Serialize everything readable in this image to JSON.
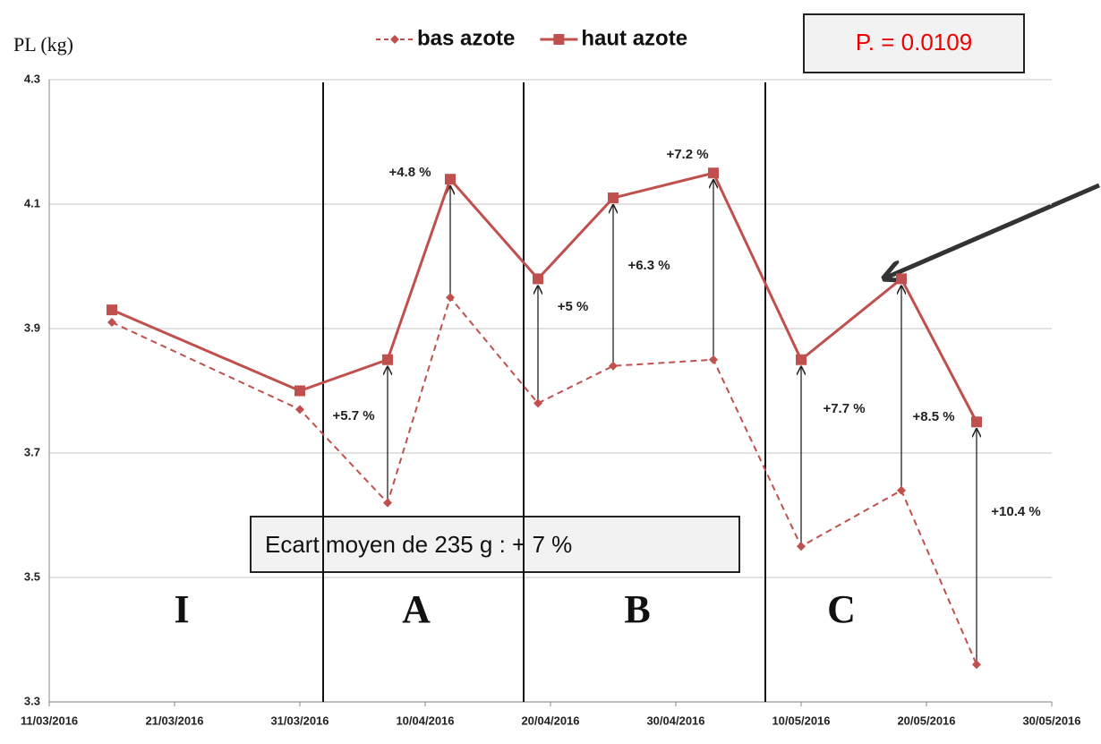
{
  "chart_data": {
    "type": "line",
    "y_label": "PL (kg)",
    "x": [
      "2016-03-16",
      "2016-03-31",
      "2016-04-07",
      "2016-04-12",
      "2016-04-19",
      "2016-04-25",
      "2016-05-03",
      "2016-05-10",
      "2016-05-18",
      "2016-05-24"
    ],
    "series": [
      {
        "name": "bas azote",
        "color": "#c0504d",
        "dashed": true,
        "marker": "diamond",
        "values": [
          3.91,
          3.77,
          3.62,
          3.95,
          3.78,
          3.84,
          3.85,
          3.55,
          3.64,
          3.36
        ]
      },
      {
        "name": "haut azote",
        "color": "#c0504d",
        "dashed": false,
        "marker": "square",
        "values": [
          3.93,
          3.8,
          3.85,
          4.14,
          3.98,
          4.11,
          4.15,
          3.85,
          3.98,
          3.75
        ]
      }
    ],
    "xlim": [
      "2016-03-11",
      "2016-05-30"
    ],
    "xticks": [
      {
        "value": "2016-03-11",
        "label": "11/03/2016"
      },
      {
        "value": "2016-03-21",
        "label": "21/03/2016"
      },
      {
        "value": "2016-03-31",
        "label": "31/03/2016"
      },
      {
        "value": "2016-04-10",
        "label": "10/04/2016"
      },
      {
        "value": "2016-04-20",
        "label": "20/04/2016"
      },
      {
        "value": "2016-04-30",
        "label": "30/04/2016"
      },
      {
        "value": "2016-05-10",
        "label": "10/05/2016"
      },
      {
        "value": "2016-05-20",
        "label": "20/05/2016"
      },
      {
        "value": "2016-05-30",
        "label": "30/05/2016"
      }
    ],
    "ylim": [
      3.3,
      4.3
    ],
    "yticks": [
      3.3,
      3.5,
      3.7,
      3.9,
      4.1,
      4.3
    ],
    "grid": true,
    "annotations": [
      "+5.7 %",
      "+4.8 %",
      "+5 %",
      "+6.3 %",
      "+7.2 %",
      "+7.7 %",
      "+8.5 %",
      "+10.4 %"
    ],
    "periods": [
      "I",
      "A",
      "B",
      "C"
    ],
    "p_value": "P. = 0.0109",
    "summary": "Ecart moyen de 235 g : + 7 %"
  }
}
